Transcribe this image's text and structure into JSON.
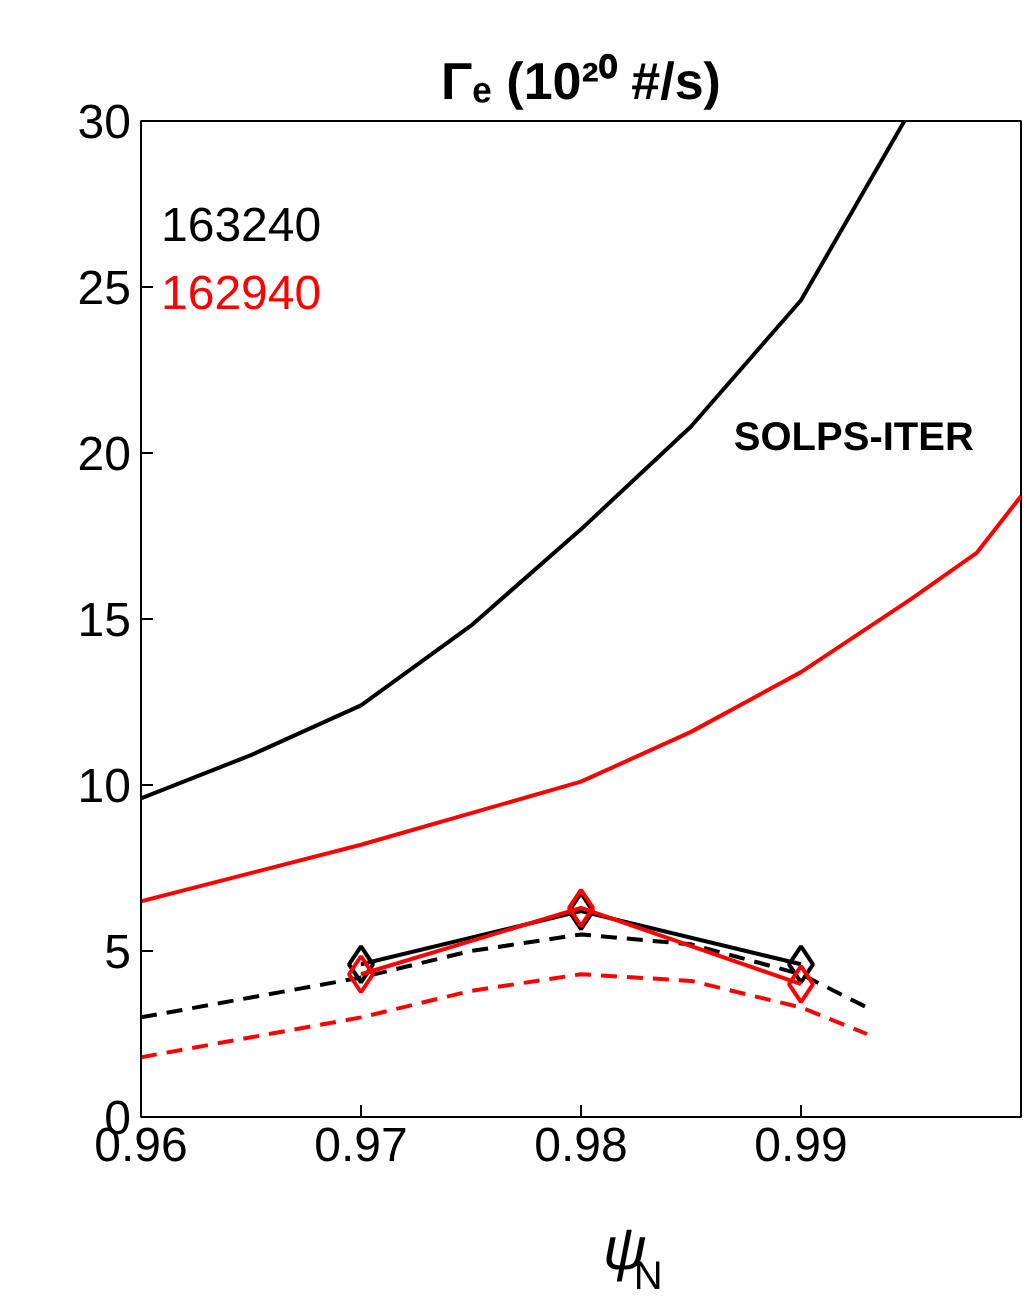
{
  "chart_data": {
    "type": "line",
    "title": "Γₑ (10²⁰ #/s)",
    "xlabel": "ψ$_{N}$",
    "xlim": [
      0.96,
      1.0
    ],
    "xticks": [
      0.96,
      0.97,
      0.98,
      0.99
    ],
    "ylim": [
      0,
      30
    ],
    "yticks": [
      0,
      5,
      10,
      15,
      20,
      25,
      30
    ],
    "grid": false,
    "legend": "top left",
    "marker": "none",
    "line_style": "solid",
    "annotations": [
      "SOLPS-ITER"
    ],
    "series": [
      {
        "name": "163240",
        "color": "#000000",
        "x": [
          0.96,
          0.965,
          0.97,
          0.975,
          0.98,
          0.985,
          0.99,
          0.9947
        ],
        "values": [
          9.6,
          10.9,
          12.4,
          14.8,
          17.7,
          20.8,
          24.6,
          30
        ]
      },
      {
        "name": "162940",
        "color": "#ff0000",
        "x": [
          0.96,
          0.97,
          0.98,
          0.985,
          0.99,
          0.995,
          0.998,
          1.0
        ],
        "values": [
          6.5,
          8.2,
          10.1,
          11.6,
          13.4,
          15.6,
          17.0,
          18.7
        ]
      },
      {
        "color": "#000000",
        "line_style": "dashed",
        "x": [
          0.96,
          0.965,
          0.97,
          0.975,
          0.98,
          0.985,
          0.99,
          0.993
        ],
        "values": [
          3.0,
          3.6,
          4.2,
          5.0,
          5.5,
          5.2,
          4.3,
          3.3
        ]
      },
      {
        "color": "#ff0000",
        "line_style": "dashed",
        "x": [
          0.96,
          0.965,
          0.97,
          0.975,
          0.98,
          0.985,
          0.99,
          0.993
        ],
        "values": [
          1.8,
          2.4,
          3.0,
          3.8,
          4.3,
          4.1,
          3.3,
          2.5
        ]
      },
      {
        "color": "#000000",
        "marker": "diamond",
        "x": [
          0.97,
          0.98,
          0.99
        ],
        "values": [
          4.6,
          6.2,
          4.6
        ]
      },
      {
        "color": "#ff0000",
        "marker": "diamond",
        "x": [
          0.97,
          0.98,
          0.99
        ],
        "values": [
          4.3,
          6.3,
          4.0
        ]
      }
    ]
  }
}
